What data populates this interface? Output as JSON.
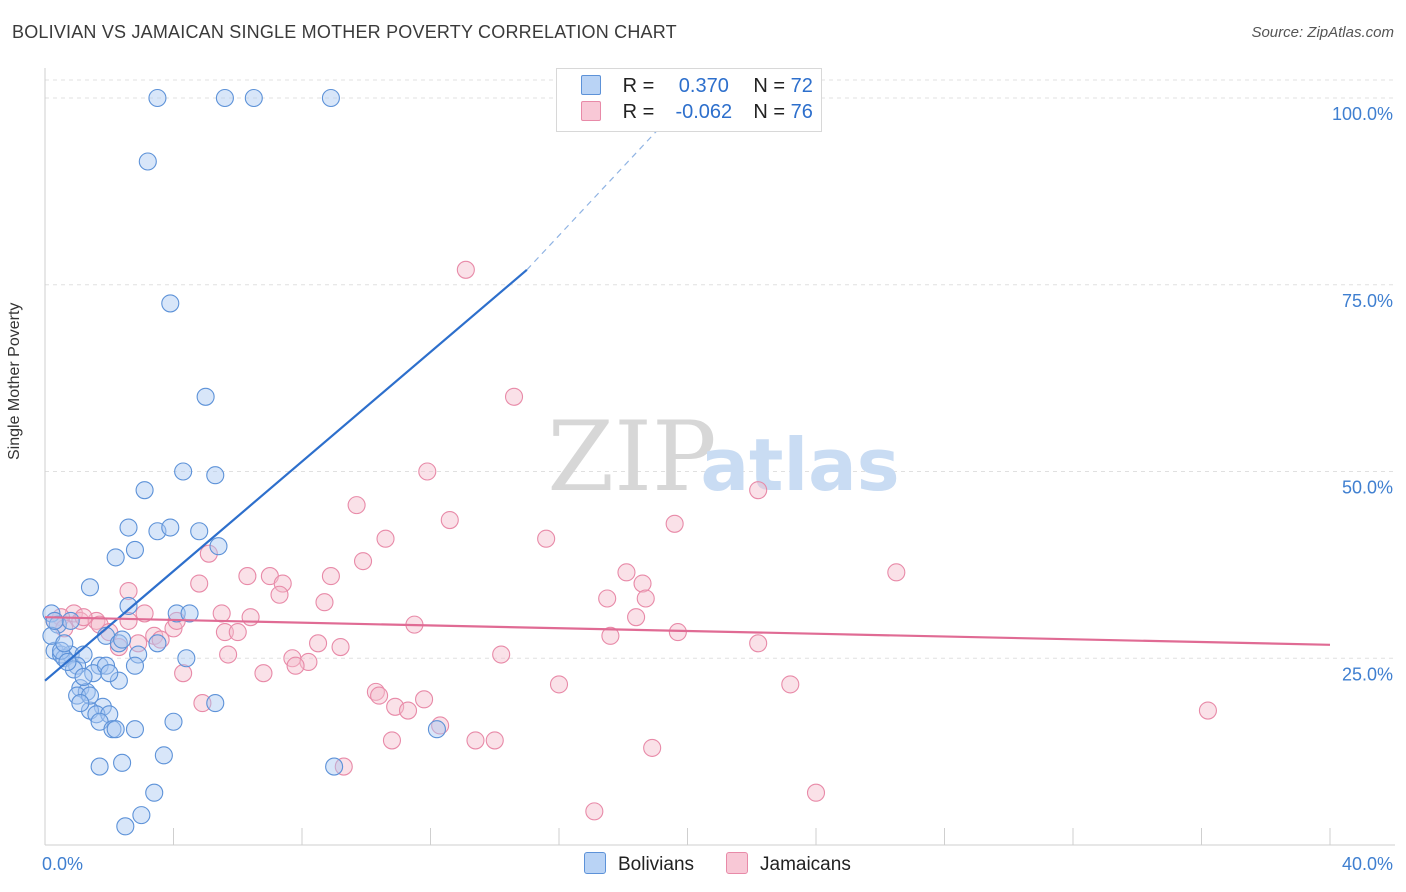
{
  "title": "BOLIVIAN VS JAMAICAN SINGLE MOTHER POVERTY CORRELATION CHART",
  "source": "Source: ZipAtlas.com",
  "watermark": {
    "zip": "ZIP",
    "atlas": "atlas"
  },
  "legend_top": {
    "rows": [
      {
        "r_label": "R =",
        "r_value": "0.370",
        "n_label": "N =",
        "n_value": "72"
      },
      {
        "r_label": "R =",
        "r_value": "-0.062",
        "n_label": "N =",
        "n_value": "76"
      }
    ]
  },
  "legend_bottom": {
    "bolivians": "Bolivians",
    "jamaicans": "Jamaicans"
  },
  "colors": {
    "blue_fill": "#a9c8f2",
    "blue_stroke": "#5d92d8",
    "blue_line": "#2d6fcc",
    "pink_fill": "#f5bccd",
    "pink_stroke": "#e88aa8",
    "pink_line": "#e06b94",
    "axis_text": "#3f7fd0",
    "grid": "#e0e0e0"
  },
  "chart_data": {
    "type": "scatter",
    "title": "BOLIVIAN VS JAMAICAN SINGLE MOTHER POVERTY CORRELATION CHART",
    "xlabel": "",
    "ylabel": "Single Mother Poverty",
    "xlim": [
      0,
      40
    ],
    "ylim": [
      0,
      100
    ],
    "x_tick_labels": [
      "0.0%",
      "40.0%"
    ],
    "y_tick_labels": [
      "100.0%",
      "75.0%",
      "50.0%",
      "25.0%"
    ],
    "y_tick_values": [
      100,
      75,
      50,
      25
    ],
    "grid": true,
    "legend_position": "top-center",
    "series": [
      {
        "name": "Bolivians",
        "r": 0.37,
        "n": 72,
        "trend": {
          "x": [
            0,
            15
          ],
          "y": [
            22,
            77
          ],
          "dashed_to": [
            20,
            100
          ]
        },
        "points": [
          [
            3.5,
            100
          ],
          [
            5.6,
            100
          ],
          [
            6.5,
            100
          ],
          [
            8.9,
            100
          ],
          [
            3.2,
            91.5
          ],
          [
            3.9,
            72.5
          ],
          [
            5.0,
            60
          ],
          [
            4.3,
            50
          ],
          [
            5.3,
            49.5
          ],
          [
            3.1,
            47.5
          ],
          [
            2.6,
            42.5
          ],
          [
            3.5,
            42
          ],
          [
            3.9,
            42.5
          ],
          [
            4.8,
            42
          ],
          [
            2.8,
            39.5
          ],
          [
            5.4,
            40
          ],
          [
            2.2,
            38.5
          ],
          [
            1.4,
            34.5
          ],
          [
            2.6,
            32
          ],
          [
            4.1,
            31
          ],
          [
            4.5,
            31
          ],
          [
            0.2,
            31
          ],
          [
            0.4,
            29.5
          ],
          [
            0.8,
            30
          ],
          [
            1.9,
            28
          ],
          [
            3.5,
            27
          ],
          [
            2.3,
            27
          ],
          [
            0.3,
            26
          ],
          [
            0.5,
            25.5
          ],
          [
            0.8,
            25.5
          ],
          [
            1.2,
            25.5
          ],
          [
            2.9,
            25.5
          ],
          [
            0.6,
            25
          ],
          [
            1.0,
            24
          ],
          [
            1.7,
            24
          ],
          [
            2.8,
            24
          ],
          [
            4.4,
            25
          ],
          [
            0.9,
            23.5
          ],
          [
            1.5,
            23
          ],
          [
            2.3,
            22
          ],
          [
            1.9,
            24
          ],
          [
            1.1,
            21
          ],
          [
            1.3,
            20.5
          ],
          [
            1.0,
            20
          ],
          [
            1.8,
            18.5
          ],
          [
            5.3,
            19
          ],
          [
            1.4,
            18
          ],
          [
            1.6,
            17.5
          ],
          [
            2.0,
            17.5
          ],
          [
            1.7,
            16.5
          ],
          [
            2.1,
            15.5
          ],
          [
            2.2,
            15.5
          ],
          [
            2.8,
            15.5
          ],
          [
            4.0,
            16.5
          ],
          [
            12.2,
            15.5
          ],
          [
            3.7,
            12
          ],
          [
            2.4,
            11
          ],
          [
            1.7,
            10.5
          ],
          [
            9.0,
            10.5
          ],
          [
            3.4,
            7
          ],
          [
            3.0,
            4
          ],
          [
            2.5,
            2.5
          ],
          [
            0.2,
            28
          ],
          [
            0.5,
            26
          ],
          [
            0.7,
            24.5
          ],
          [
            1.2,
            22.5
          ],
          [
            1.4,
            20
          ],
          [
            2.0,
            23
          ],
          [
            0.3,
            30
          ],
          [
            0.6,
            27
          ],
          [
            1.1,
            19
          ],
          [
            2.4,
            27.5
          ]
        ]
      },
      {
        "name": "Jamaicans",
        "r": -0.062,
        "n": 76,
        "trend": {
          "x": [
            0,
            40
          ],
          "y": [
            30.5,
            26.8
          ]
        },
        "points": [
          [
            13.1,
            77
          ],
          [
            14.6,
            60
          ],
          [
            11.9,
            50
          ],
          [
            22.2,
            47.5
          ],
          [
            9.7,
            45.5
          ],
          [
            12.6,
            43.5
          ],
          [
            19.6,
            43
          ],
          [
            15.6,
            41
          ],
          [
            10.6,
            41
          ],
          [
            5.1,
            39
          ],
          [
            9.9,
            38
          ],
          [
            26.5,
            36.5
          ],
          [
            18.1,
            36.5
          ],
          [
            6.3,
            36
          ],
          [
            7.0,
            36
          ],
          [
            8.9,
            36
          ],
          [
            18.6,
            35
          ],
          [
            7.4,
            35
          ],
          [
            4.8,
            35
          ],
          [
            2.6,
            34
          ],
          [
            7.3,
            33.5
          ],
          [
            18.7,
            33
          ],
          [
            17.5,
            33
          ],
          [
            8.7,
            32.5
          ],
          [
            3.1,
            31
          ],
          [
            5.5,
            31
          ],
          [
            6.4,
            30.5
          ],
          [
            0.9,
            31
          ],
          [
            0.5,
            30.5
          ],
          [
            2.6,
            30
          ],
          [
            1.6,
            30
          ],
          [
            1.1,
            30
          ],
          [
            1.7,
            29.5
          ],
          [
            18.4,
            30.5
          ],
          [
            11.5,
            29.5
          ],
          [
            4.0,
            29
          ],
          [
            5.6,
            28.5
          ],
          [
            6.0,
            28.5
          ],
          [
            3.4,
            28
          ],
          [
            3.6,
            27.5
          ],
          [
            2.9,
            27
          ],
          [
            17.6,
            28
          ],
          [
            22.2,
            27
          ],
          [
            8.5,
            27
          ],
          [
            9.2,
            26.5
          ],
          [
            2.3,
            26.5
          ],
          [
            5.7,
            25.5
          ],
          [
            14.2,
            25.5
          ],
          [
            7.7,
            25
          ],
          [
            8.2,
            24.5
          ],
          [
            4.3,
            23
          ],
          [
            6.8,
            23
          ],
          [
            7.8,
            24
          ],
          [
            23.2,
            21.5
          ],
          [
            16.0,
            21.5
          ],
          [
            10.3,
            20.5
          ],
          [
            10.4,
            20
          ],
          [
            11.8,
            19.5
          ],
          [
            4.9,
            19
          ],
          [
            10.9,
            18.5
          ],
          [
            11.3,
            18
          ],
          [
            36.2,
            18
          ],
          [
            12.3,
            16
          ],
          [
            13.4,
            14
          ],
          [
            14.0,
            14
          ],
          [
            10.8,
            14
          ],
          [
            18.9,
            13
          ],
          [
            9.3,
            10.5
          ],
          [
            24.0,
            7
          ],
          [
            17.1,
            4.5
          ],
          [
            1.2,
            30.5
          ],
          [
            0.3,
            30
          ],
          [
            0.6,
            29
          ],
          [
            2.0,
            28.5
          ],
          [
            4.1,
            30
          ],
          [
            19.7,
            28.5
          ]
        ]
      }
    ]
  }
}
